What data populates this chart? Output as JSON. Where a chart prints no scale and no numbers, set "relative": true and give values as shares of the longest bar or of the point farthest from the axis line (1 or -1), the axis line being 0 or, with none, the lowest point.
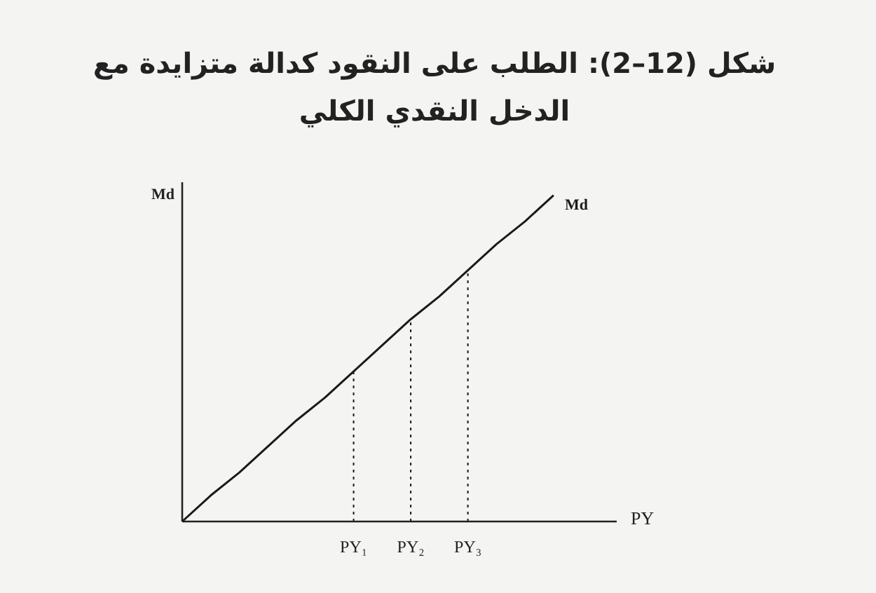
{
  "chart_data": {
    "type": "line",
    "title": "شكل (12–2): الطلب على النقود كدالة متزايدة مع الدخل النقدي الكلي",
    "xlabel": "PY",
    "ylabel": "Md",
    "relative": true,
    "categories": [
      null,
      null,
      null,
      null,
      null,
      null,
      "PY₁",
      null,
      "PY₂",
      null,
      "PY₃",
      null,
      null,
      null
    ],
    "series": [
      {
        "name": "Md",
        "color": "#1a1a1a",
        "values": [
          0,
          0.08,
          0.15,
          0.23,
          0.31,
          0.38,
          0.46,
          0.54,
          0.62,
          0.69,
          0.77,
          0.85,
          0.92,
          1
        ]
      },
      {
        "color": "#1a1a1a",
        "line_style": "dotted",
        "x": [
          "PY₁",
          "PY₁"
        ],
        "values": [
          0,
          0.46
        ]
      },
      {
        "color": "#1a1a1a",
        "line_style": "dotted",
        "x": [
          "PY₂",
          "PY₂"
        ],
        "values": [
          0,
          0.62
        ]
      },
      {
        "color": "#1a1a1a",
        "line_style": "dotted",
        "x": [
          "PY₃",
          "PY₃"
        ],
        "values": [
          0,
          0.77
        ]
      }
    ]
  }
}
